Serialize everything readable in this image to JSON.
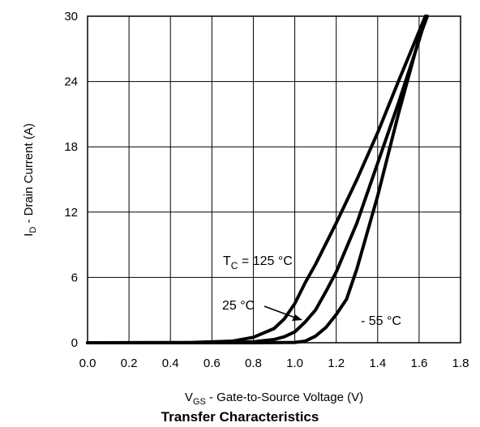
{
  "chart_data": {
    "type": "line",
    "title": "Transfer Characteristics",
    "xlabel": {
      "main": "V",
      "sub": "GS",
      "rest": " - Gate-to-Source Voltage (V)"
    },
    "ylabel": {
      "main": "I",
      "sub": "D",
      "rest": " - Drain Current (A)"
    },
    "xlim": [
      0.0,
      1.8
    ],
    "ylim": [
      0,
      30
    ],
    "xticks": [
      "0.0",
      "0.2",
      "0.4",
      "0.6",
      "0.8",
      "1.0",
      "1.2",
      "1.4",
      "1.6",
      "1.8"
    ],
    "yticks": [
      "0",
      "6",
      "12",
      "18",
      "24",
      "30"
    ],
    "grid": true,
    "series": [
      {
        "name": "T_C = 125 °C",
        "x": [
          0.0,
          0.5,
          0.7,
          0.8,
          0.9,
          0.95,
          1.0,
          1.05,
          1.1,
          1.2,
          1.3,
          1.4,
          1.5,
          1.6,
          1.63
        ],
        "y": [
          0.0,
          0.02,
          0.15,
          0.5,
          1.3,
          2.2,
          3.6,
          5.5,
          7.2,
          11.0,
          15.0,
          19.3,
          24.0,
          28.6,
          30.0
        ]
      },
      {
        "name": "25 °C",
        "x": [
          0.0,
          0.7,
          0.8,
          0.9,
          0.95,
          1.0,
          1.05,
          1.1,
          1.15,
          1.2,
          1.3,
          1.4,
          1.5,
          1.6,
          1.635
        ],
        "y": [
          0.0,
          0.02,
          0.08,
          0.3,
          0.55,
          1.0,
          1.9,
          3.0,
          4.7,
          6.5,
          11.0,
          16.5,
          22.0,
          27.8,
          30.0
        ]
      },
      {
        "name": "- 55 °C",
        "x": [
          0.0,
          0.8,
          1.0,
          1.05,
          1.1,
          1.15,
          1.2,
          1.25,
          1.3,
          1.4,
          1.5,
          1.6,
          1.64
        ],
        "y": [
          0.0,
          0.0,
          0.03,
          0.15,
          0.6,
          1.4,
          2.6,
          4.0,
          6.8,
          13.5,
          21.0,
          28.0,
          30.0
        ]
      }
    ],
    "annotations": {
      "tc_main": "T",
      "tc_sub": "C",
      "tc_rest": " = 125 °C",
      "t25": "25 °C",
      "tm55": "- 55 °C"
    }
  }
}
